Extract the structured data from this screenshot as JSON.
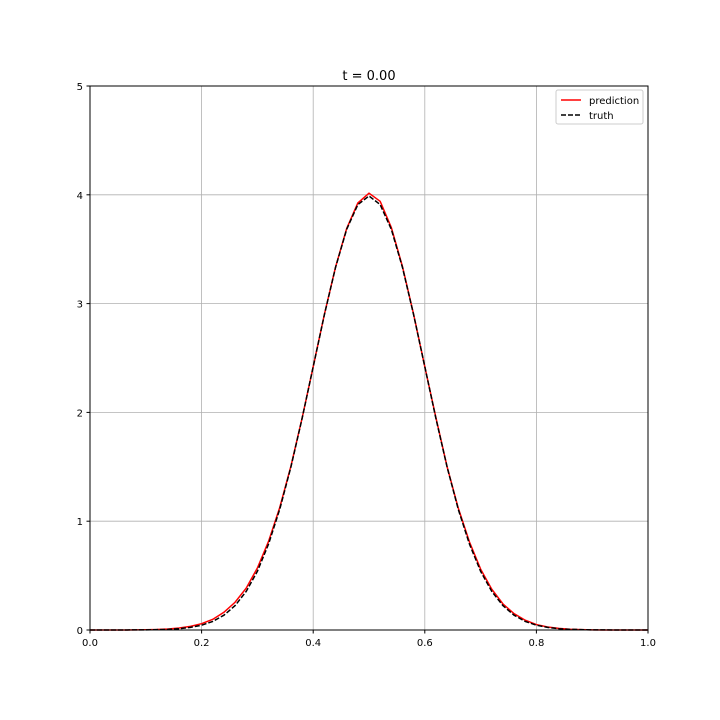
{
  "chart_data": {
    "type": "line",
    "title": "t = 0.00",
    "xlabel": "",
    "ylabel": "",
    "xlim": [
      0.0,
      1.0
    ],
    "ylim": [
      0,
      5
    ],
    "xticks": [
      "0.0",
      "0.2",
      "0.4",
      "0.6",
      "0.8",
      "1.0"
    ],
    "yticks": [
      "0",
      "1",
      "2",
      "3",
      "4",
      "5"
    ],
    "grid": true,
    "legend_position": "top-right",
    "x": [
      0,
      0.02,
      0.04,
      0.06,
      0.08,
      0.1,
      0.12,
      0.14,
      0.16,
      0.18,
      0.2,
      0.22,
      0.24,
      0.26,
      0.28,
      0.3,
      0.32,
      0.34,
      0.36,
      0.38,
      0.4,
      0.42,
      0.44,
      0.46,
      0.48,
      0.5,
      0.52,
      0.54,
      0.56,
      0.58,
      0.6,
      0.62,
      0.64,
      0.66,
      0.68,
      0.7,
      0.72,
      0.74,
      0.76,
      0.78,
      0.8,
      0.82,
      0.84,
      0.86,
      0.88,
      0.9,
      0.92,
      0.94,
      0.96,
      0.98,
      1.0
    ],
    "series": [
      {
        "name": "prediction",
        "color": "#ff0000",
        "style": "solid",
        "values": [
          0,
          0,
          0,
          0,
          0.001,
          0.002,
          0.004,
          0.009,
          0.018,
          0.033,
          0.058,
          0.098,
          0.163,
          0.255,
          0.385,
          0.57,
          0.815,
          1.125,
          1.505,
          1.945,
          2.42,
          2.9,
          3.335,
          3.69,
          3.925,
          4.015,
          3.94,
          3.7,
          3.34,
          2.9,
          2.42,
          1.95,
          1.5,
          1.12,
          0.81,
          0.56,
          0.375,
          0.24,
          0.15,
          0.09,
          0.05,
          0.028,
          0.015,
          0.007,
          0.003,
          0.001,
          0,
          0,
          0,
          0,
          0
        ]
      },
      {
        "name": "truth",
        "color": "#000000",
        "style": "dashed",
        "values": [
          0,
          0,
          0,
          0,
          0.001,
          0.001,
          0.003,
          0.006,
          0.012,
          0.024,
          0.044,
          0.079,
          0.136,
          0.224,
          0.355,
          0.54,
          0.79,
          1.109,
          1.497,
          1.942,
          2.42,
          2.897,
          3.332,
          3.683,
          3.91,
          3.989,
          3.91,
          3.683,
          3.332,
          2.897,
          2.42,
          1.942,
          1.497,
          1.109,
          0.79,
          0.54,
          0.355,
          0.224,
          0.136,
          0.079,
          0.044,
          0.024,
          0.012,
          0.006,
          0.003,
          0.001,
          0.001,
          0,
          0,
          0,
          0
        ]
      }
    ]
  }
}
